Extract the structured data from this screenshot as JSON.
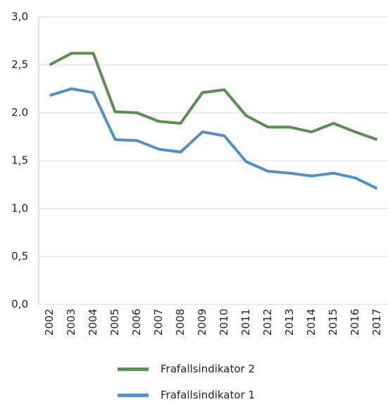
{
  "chart_data": {
    "type": "line",
    "categories": [
      "2002",
      "2003",
      "2004",
      "2005",
      "2006",
      "2007",
      "2008",
      "2009",
      "2010",
      "2011",
      "2012",
      "2013",
      "2014",
      "2015",
      "2016",
      "2017"
    ],
    "series": [
      {
        "name": "Frafallsindikator 2",
        "color": "#5b8f52",
        "values": [
          2.5,
          2.62,
          2.62,
          2.01,
          2.0,
          1.91,
          1.89,
          2.21,
          2.24,
          1.97,
          1.85,
          1.85,
          1.8,
          1.89,
          1.8,
          1.72
        ]
      },
      {
        "name": "Frafallsindikator 1",
        "color": "#4f8fcb",
        "values": [
          2.18,
          2.25,
          2.21,
          1.72,
          1.71,
          1.62,
          1.59,
          1.8,
          1.76,
          1.49,
          1.39,
          1.37,
          1.34,
          1.37,
          1.32,
          1.21
        ]
      }
    ],
    "ylim": [
      0,
      3
    ],
    "yticks": [
      {
        "value": 0,
        "label": "0,0"
      },
      {
        "value": 0.5,
        "label": "0,5"
      },
      {
        "value": 1,
        "label": "1,0"
      },
      {
        "value": 1.5,
        "label": "1,5"
      },
      {
        "value": 2,
        "label": "2.0"
      },
      {
        "value": 2.5,
        "label": "2,5"
      },
      {
        "value": 3,
        "label": "3,0"
      }
    ],
    "grid": true
  }
}
